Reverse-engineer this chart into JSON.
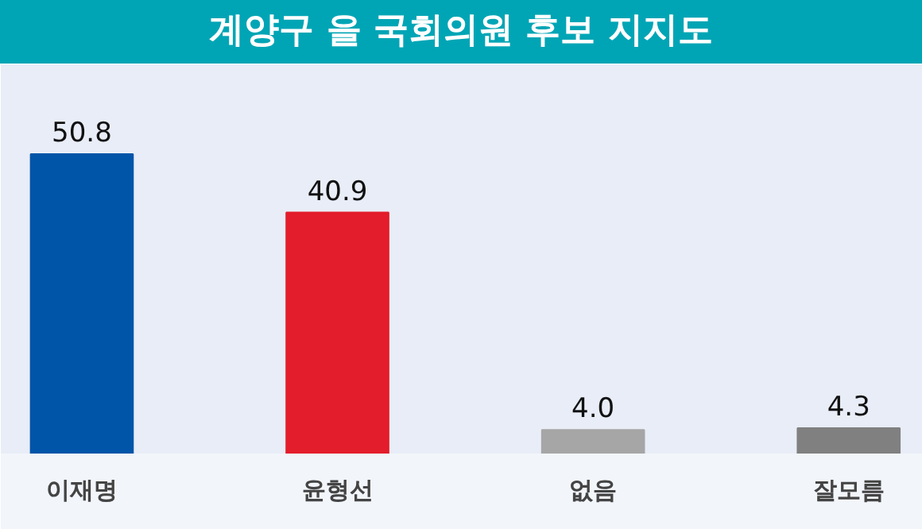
{
  "chart_data": {
    "type": "bar",
    "title": "계양구 을 국회의원 후보 지지도",
    "categories": [
      "이재명",
      "윤형선",
      "없음",
      "잘모름"
    ],
    "values": [
      50.8,
      40.9,
      4.0,
      4.3
    ],
    "value_labels": [
      "50.8",
      "40.9",
      "4.0",
      "4.3"
    ],
    "colors": [
      "#0055a8",
      "#e31d2b",
      "#a6a6a6",
      "#808080"
    ]
  }
}
